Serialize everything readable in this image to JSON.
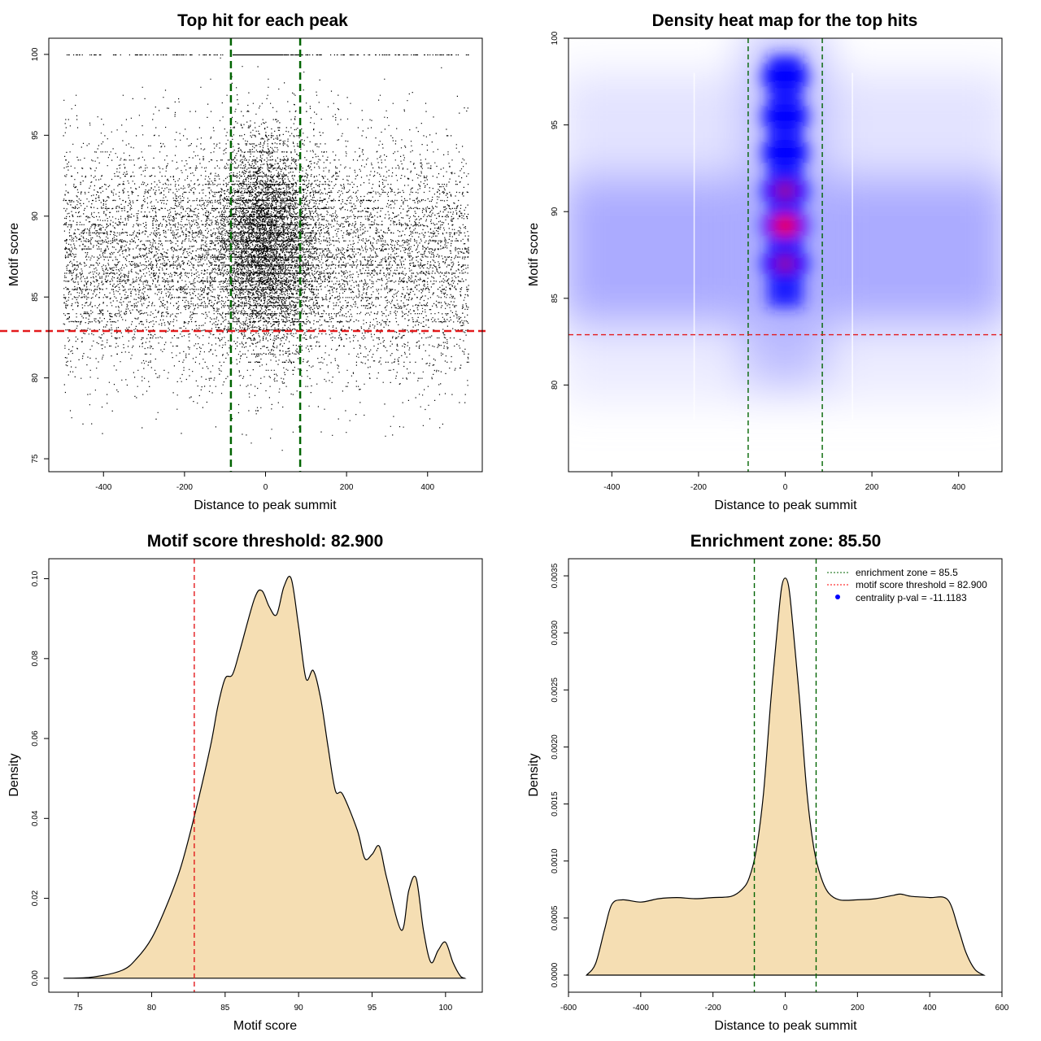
{
  "chart_data": [
    {
      "id": "scatter",
      "type": "scatter",
      "title": "Top hit for each peak",
      "xlabel": "Distance to peak summit",
      "ylabel": "Motif score",
      "xlim": [
        -535,
        535
      ],
      "ylim": [
        74.2,
        101.0
      ],
      "xticks": [
        -400,
        -200,
        0,
        200,
        400
      ],
      "yticks": [
        75,
        80,
        85,
        90,
        95,
        100
      ],
      "vlines": [
        -85.5,
        85.5
      ],
      "hline": 82.9,
      "points_description_x_range": [
        -500,
        500
      ],
      "seed": 12345
    },
    {
      "id": "heatmap",
      "type": "heatmap",
      "title": "Density heat map for the top hits",
      "xlabel": "Distance to peak summit",
      "ylabel": "Motif score",
      "xlim": [
        -500,
        500
      ],
      "ylim": [
        75,
        100
      ],
      "xticks": [
        -400,
        -200,
        0,
        200,
        400
      ],
      "yticks": [
        80,
        85,
        90,
        95,
        100
      ],
      "vlines": [
        -85.5,
        85.5
      ],
      "hline": 82.9,
      "hotspots": [
        {
          "x": 0,
          "y": 89.2,
          "intensity": 1.0
        },
        {
          "x": 0,
          "y": 91.2,
          "intensity": 0.75
        },
        {
          "x": 0,
          "y": 87.0,
          "intensity": 0.7
        },
        {
          "x": 0,
          "y": 93.4,
          "intensity": 0.55
        },
        {
          "x": 0,
          "y": 95.5,
          "intensity": 0.5
        },
        {
          "x": 0,
          "y": 97.8,
          "intensity": 0.5
        }
      ]
    },
    {
      "id": "score-density",
      "type": "area",
      "title": "Motif score threshold: 82.900",
      "xlabel": "Motif score",
      "ylabel": "Density",
      "xlim": [
        73.0,
        102.5
      ],
      "ylim": [
        -0.0035,
        0.105
      ],
      "xticks": [
        75,
        80,
        85,
        90,
        95,
        100
      ],
      "yticks": [
        0.0,
        0.02,
        0.04,
        0.06,
        0.08,
        0.1
      ],
      "ytick_labels": [
        "0.00",
        "0.02",
        "0.04",
        "0.06",
        "0.08",
        "0.10"
      ],
      "vline": 82.9,
      "x": [
        74,
        76,
        78,
        79,
        80,
        81,
        82,
        83,
        84,
        84.5,
        85,
        85.5,
        86,
        87,
        87.5,
        88,
        88.5,
        89,
        89.5,
        90,
        90.5,
        91,
        91.5,
        92,
        92.5,
        93,
        94,
        94.5,
        95,
        95.5,
        96,
        97,
        97.5,
        98,
        98.5,
        99,
        99.5,
        100,
        100.5,
        101,
        101.3
      ],
      "y": [
        0.0,
        0.0003,
        0.002,
        0.005,
        0.01,
        0.018,
        0.028,
        0.042,
        0.058,
        0.068,
        0.075,
        0.076,
        0.082,
        0.095,
        0.097,
        0.093,
        0.091,
        0.098,
        0.1,
        0.088,
        0.075,
        0.077,
        0.07,
        0.058,
        0.047,
        0.046,
        0.037,
        0.03,
        0.031,
        0.033,
        0.025,
        0.012,
        0.022,
        0.025,
        0.012,
        0.004,
        0.007,
        0.009,
        0.004,
        0.0006,
        0.0
      ]
    },
    {
      "id": "distance-density",
      "type": "area",
      "title": "Enrichment zone: 85.50",
      "xlabel": "Distance to peak summit",
      "ylabel": "Density",
      "xlim": [
        -600,
        600
      ],
      "ylim": [
        -0.00015,
        0.00365
      ],
      "xticks": [
        -600,
        -400,
        -200,
        0,
        200,
        400,
        600
      ],
      "yticks": [
        0.0,
        0.0005,
        0.001,
        0.0015,
        0.002,
        0.0025,
        0.003,
        0.0035
      ],
      "ytick_labels": [
        "0.0000",
        "0.0005",
        "0.0010",
        "0.0015",
        "0.0020",
        "0.0025",
        "0.0030",
        "0.0035"
      ],
      "vlines": [
        -85.5,
        85.5
      ],
      "x": [
        -550,
        -525,
        -500,
        -480,
        -450,
        -400,
        -350,
        -300,
        -250,
        -200,
        -150,
        -120,
        -100,
        -80,
        -60,
        -40,
        -20,
        -10,
        0,
        10,
        20,
        40,
        60,
        80,
        100,
        120,
        150,
        200,
        250,
        300,
        320,
        350,
        400,
        450,
        480,
        500,
        525,
        550
      ],
      "y": [
        0.0,
        0.0001,
        0.0004,
        0.00062,
        0.00066,
        0.00064,
        0.00067,
        0.00068,
        0.00067,
        0.00068,
        0.00069,
        0.00075,
        0.00085,
        0.0011,
        0.0016,
        0.0024,
        0.0031,
        0.0034,
        0.00348,
        0.0034,
        0.0031,
        0.0024,
        0.0016,
        0.0011,
        0.00085,
        0.00072,
        0.00066,
        0.00066,
        0.00067,
        0.0007,
        0.00071,
        0.00069,
        0.00068,
        0.00066,
        0.0004,
        0.0002,
        5e-05,
        0.0
      ],
      "legend": [
        {
          "label": "enrichment zone = 85.5",
          "color": "#006400",
          "style": "dotted-line"
        },
        {
          "label": "motif score threshold = 82.900",
          "color": "#ff0000",
          "style": "dotted-line"
        },
        {
          "label": "centrality p-val = -11.1183",
          "color": "#0000ff",
          "style": "point"
        }
      ],
      "legend_position": "top-right"
    }
  ],
  "colors": {
    "fill": "#f5deb3",
    "green": "#006400",
    "red": "#e31a1c",
    "blue": "#0000ff",
    "heat_red": "#ff0000"
  }
}
